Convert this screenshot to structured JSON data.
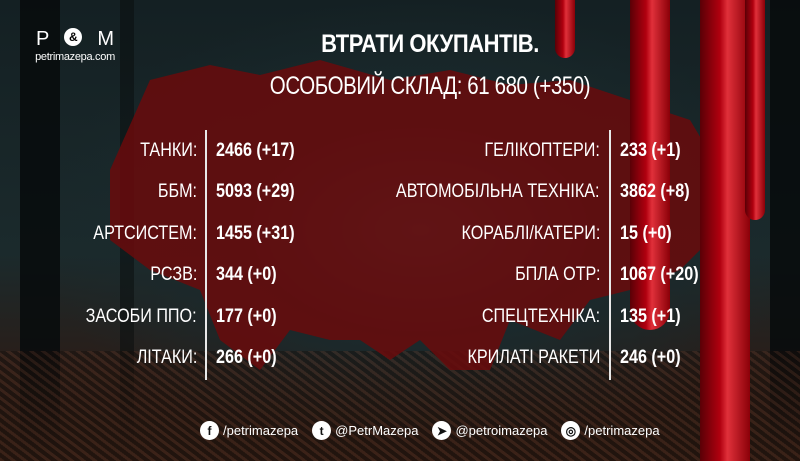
{
  "logo": {
    "left_letter": "P",
    "amp": "&",
    "right_letter": "M",
    "site": "petrimazepa.com"
  },
  "title": "ВТРАТИ ОКУПАНТІВ.",
  "subtitle": "ОСОБОВИЙ СКЛАД: 61 680 (+350)",
  "left_stats": [
    {
      "label": "ТАНКИ:",
      "value": "2466 (+17)"
    },
    {
      "label": "ББМ:",
      "value": "5093 (+29)"
    },
    {
      "label": "АРТСИСТЕМ:",
      "value": "1455 (+31)"
    },
    {
      "label": "РСЗВ:",
      "value": "344 (+0)"
    },
    {
      "label": "ЗАСОБИ ППО:",
      "value": "177 (+0)"
    },
    {
      "label": "ЛІТАКИ:",
      "value": "266 (+0)"
    }
  ],
  "right_stats": [
    {
      "label": "ГЕЛІКОПТЕРИ:",
      "value": "233 (+1)"
    },
    {
      "label": "АВТОМОБІЛЬНА ТЕХНІКА:",
      "value": "3862 (+8)"
    },
    {
      "label": "КОРАБЛІ/КАТЕРИ:",
      "value": "15 (+0)"
    },
    {
      "label": "БПЛА ОТР:",
      "value": "1067 (+20)"
    },
    {
      "label": "СПЕЦТЕХНІКА:",
      "value": "135 (+1)"
    },
    {
      "label": "КРИЛАТІ РАКЕТИ",
      "value": "246 (+0)"
    }
  ],
  "social": [
    {
      "icon": "facebook-icon",
      "glyph": "f",
      "handle": "/petrimazepa"
    },
    {
      "icon": "twitter-icon",
      "glyph": "t",
      "handle": "@PetrMazepa"
    },
    {
      "icon": "telegram-icon",
      "glyph": "➤",
      "handle": "@petroimazepa"
    },
    {
      "icon": "instagram-icon",
      "glyph": "◎",
      "handle": "/petrimazepa"
    }
  ],
  "colors": {
    "map": "#6a0a0c",
    "blood": "#b0000f"
  }
}
